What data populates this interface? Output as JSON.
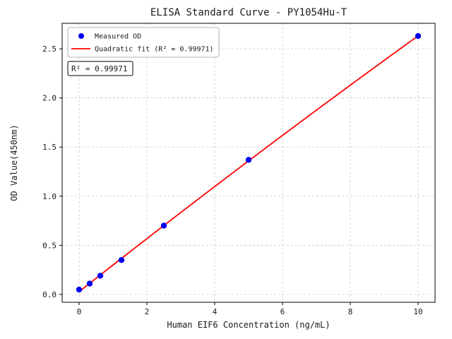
{
  "chart_data": {
    "type": "scatter",
    "title": "ELISA Standard Curve - PY1054Hu-T",
    "xlabel": "Human EIF6 Concentration (ng/mL)",
    "ylabel": "OD Value(450nm)",
    "xlim": [
      -0.5,
      10.5
    ],
    "ylim": [
      -0.08,
      2.76
    ],
    "xticks": [
      0,
      2,
      4,
      6,
      8,
      10
    ],
    "xtick_labels": [
      "0",
      "2",
      "4",
      "6",
      "8",
      "10"
    ],
    "yticks": [
      0,
      0.5,
      1,
      1.5,
      2,
      2.5
    ],
    "ytick_labels": [
      "0.0",
      "0.5",
      "1.0",
      "1.5",
      "2.0",
      "2.5"
    ],
    "grid": true,
    "grid_color": "#c9c9c9",
    "annotation": "R² = 0.99971",
    "r_squared": "0.99971",
    "legend": {
      "position": "upper-left",
      "entries": [
        {
          "label": "Measured OD",
          "marker": "point",
          "color": "#0000ee"
        },
        {
          "label": "Quadratic fit (R² = 0.99971)",
          "marker": "line",
          "color": "#ff0000"
        }
      ]
    },
    "series": [
      {
        "name": "Measured OD",
        "type": "scatter",
        "color": "#0000ee",
        "x": [
          0,
          0.3125,
          0.625,
          1.25,
          2.5,
          5,
          10
        ],
        "y": [
          0.049,
          0.11,
          0.19,
          0.35,
          0.7,
          1.37,
          2.63
        ]
      },
      {
        "name": "Quadratic fit",
        "type": "quadratic_fit_of_series_0",
        "color": "#ff0000",
        "x_range": [
          0,
          10
        ]
      }
    ]
  }
}
